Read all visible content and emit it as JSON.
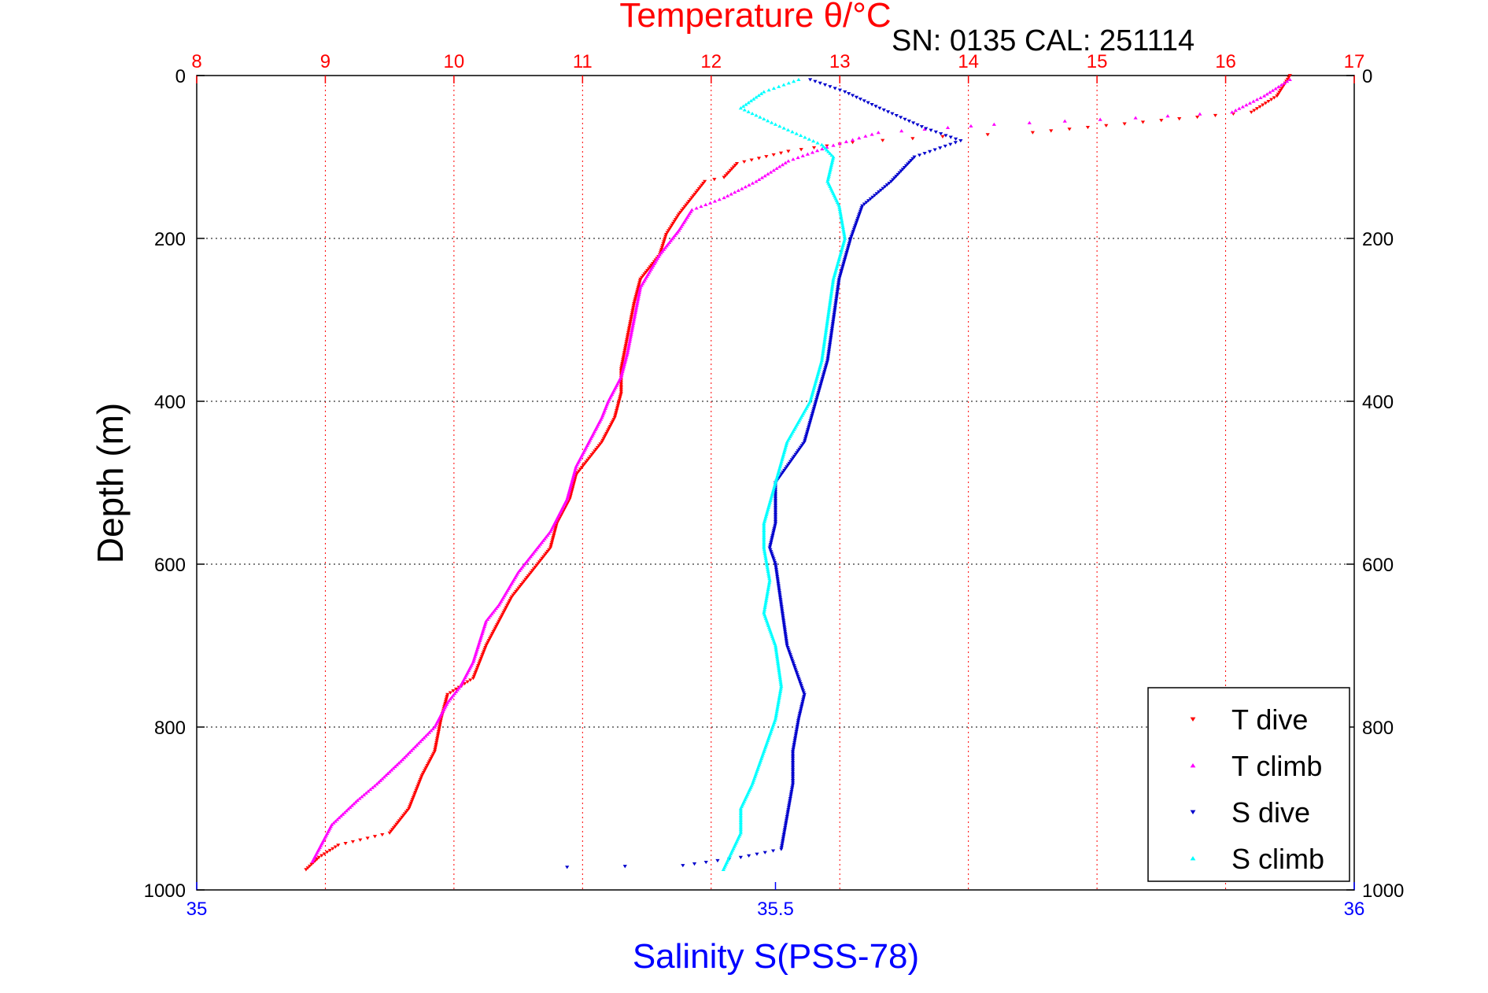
{
  "header": {
    "title": "Temperature θ/°C",
    "subtitle": "SN: 0135  CAL: 251114"
  },
  "colors": {
    "temperature_axis": "#ff0000",
    "salinity_axis": "#0000ff",
    "t_dive": "#ff0000",
    "t_climb": "#ff00ff",
    "s_dive": "#0000cc",
    "s_climb": "#00ffff",
    "grid_depth": "#000000",
    "grid_temp": "#ff0000"
  },
  "chart_data": {
    "type": "scatter",
    "title": "Temperature θ/°C",
    "subtitle": "SN: 0135  CAL: 251114",
    "ylabel": "Depth (m)",
    "xlabel": "Salinity S(PSS-78)",
    "ylim": [
      0,
      1000
    ],
    "y_reversed": true,
    "y_ticks": [
      "0",
      "200",
      "400",
      "600",
      "800",
      "1000"
    ],
    "temperature_axis": {
      "label": "Temperature θ/°C",
      "lim": [
        8,
        17
      ],
      "ticks": [
        "8",
        "9",
        "10",
        "11",
        "12",
        "13",
        "14",
        "15",
        "16",
        "17"
      ]
    },
    "salinity_axis": {
      "label": "Salinity S(PSS-78)",
      "lim": [
        35,
        36
      ],
      "ticks": [
        "35",
        "35.5",
        "36"
      ]
    },
    "grid": true,
    "legend_position": "bottom-right",
    "legend": [
      "T dive",
      "T climb",
      "S dive",
      "S climb"
    ],
    "series": [
      {
        "name": "T dive",
        "axis": "temperature",
        "marker": "triangle-down",
        "points": [
          [
            16.5,
            0
          ],
          [
            16.4,
            25
          ],
          [
            16.2,
            45
          ],
          [
            15.5,
            55
          ],
          [
            14.5,
            70
          ],
          [
            13.8,
            75
          ],
          [
            13.1,
            82
          ],
          [
            12.6,
            93
          ],
          [
            12.2,
            108
          ],
          [
            12.1,
            125
          ],
          [
            11.95,
            130
          ],
          [
            11.85,
            150
          ],
          [
            11.75,
            170
          ],
          [
            11.65,
            195
          ],
          [
            11.6,
            220
          ],
          [
            11.45,
            250
          ],
          [
            11.4,
            280
          ],
          [
            11.35,
            320
          ],
          [
            11.3,
            360
          ],
          [
            11.3,
            390
          ],
          [
            11.25,
            420
          ],
          [
            11.15,
            450
          ],
          [
            11.05,
            470
          ],
          [
            10.95,
            490
          ],
          [
            10.9,
            520
          ],
          [
            10.8,
            550
          ],
          [
            10.75,
            580
          ],
          [
            10.6,
            610
          ],
          [
            10.45,
            640
          ],
          [
            10.35,
            670
          ],
          [
            10.25,
            700
          ],
          [
            10.15,
            740
          ],
          [
            9.95,
            760
          ],
          [
            9.9,
            790
          ],
          [
            9.85,
            830
          ],
          [
            9.75,
            860
          ],
          [
            9.65,
            900
          ],
          [
            9.5,
            930
          ],
          [
            9.1,
            945
          ],
          [
            8.95,
            960
          ],
          [
            8.85,
            975
          ]
        ]
      },
      {
        "name": "T climb",
        "axis": "temperature",
        "marker": "triangle-up",
        "points": [
          [
            16.5,
            5
          ],
          [
            16.3,
            25
          ],
          [
            16.05,
            45
          ],
          [
            15.3,
            52
          ],
          [
            14.2,
            60
          ],
          [
            13.3,
            70
          ],
          [
            12.9,
            88
          ],
          [
            12.6,
            105
          ],
          [
            12.35,
            130
          ],
          [
            12.1,
            150
          ],
          [
            11.85,
            165
          ],
          [
            11.75,
            190
          ],
          [
            11.6,
            220
          ],
          [
            11.45,
            260
          ],
          [
            11.4,
            300
          ],
          [
            11.35,
            340
          ],
          [
            11.3,
            370
          ],
          [
            11.2,
            400
          ],
          [
            11.15,
            420
          ],
          [
            11.05,
            450
          ],
          [
            10.95,
            480
          ],
          [
            10.88,
            520
          ],
          [
            10.75,
            560
          ],
          [
            10.65,
            580
          ],
          [
            10.5,
            610
          ],
          [
            10.35,
            650
          ],
          [
            10.25,
            670
          ],
          [
            10.15,
            720
          ],
          [
            10.05,
            750
          ],
          [
            9.95,
            770
          ],
          [
            9.85,
            800
          ],
          [
            9.6,
            840
          ],
          [
            9.4,
            870
          ],
          [
            9.25,
            890
          ],
          [
            9.05,
            920
          ],
          [
            8.95,
            950
          ],
          [
            8.9,
            965
          ]
        ]
      },
      {
        "name": "S dive",
        "axis": "salinity",
        "marker": "triangle-down",
        "points": [
          [
            35.53,
            5
          ],
          [
            35.56,
            20
          ],
          [
            35.59,
            40
          ],
          [
            35.63,
            65
          ],
          [
            35.66,
            80
          ],
          [
            35.62,
            100
          ],
          [
            35.6,
            130
          ],
          [
            35.575,
            160
          ],
          [
            35.565,
            200
          ],
          [
            35.555,
            250
          ],
          [
            35.55,
            300
          ],
          [
            35.545,
            350
          ],
          [
            35.535,
            400
          ],
          [
            35.525,
            450
          ],
          [
            35.5,
            500
          ],
          [
            35.5,
            550
          ],
          [
            35.495,
            580
          ],
          [
            35.5,
            600
          ],
          [
            35.505,
            650
          ],
          [
            35.51,
            700
          ],
          [
            35.525,
            760
          ],
          [
            35.52,
            790
          ],
          [
            35.515,
            830
          ],
          [
            35.515,
            870
          ],
          [
            35.51,
            910
          ],
          [
            35.505,
            950
          ],
          [
            35.47,
            960
          ],
          [
            35.42,
            970
          ],
          [
            35.32,
            972
          ]
        ]
      },
      {
        "name": "S climb",
        "axis": "salinity",
        "marker": "triangle-up",
        "points": [
          [
            35.52,
            5
          ],
          [
            35.49,
            20
          ],
          [
            35.47,
            40
          ],
          [
            35.5,
            60
          ],
          [
            35.54,
            85
          ],
          [
            35.55,
            100
          ],
          [
            35.545,
            130
          ],
          [
            35.555,
            160
          ],
          [
            35.56,
            200
          ],
          [
            35.55,
            250
          ],
          [
            35.545,
            300
          ],
          [
            35.54,
            350
          ],
          [
            35.53,
            400
          ],
          [
            35.51,
            450
          ],
          [
            35.5,
            500
          ],
          [
            35.49,
            550
          ],
          [
            35.49,
            580
          ],
          [
            35.495,
            620
          ],
          [
            35.49,
            660
          ],
          [
            35.5,
            700
          ],
          [
            35.505,
            750
          ],
          [
            35.5,
            790
          ],
          [
            35.49,
            830
          ],
          [
            35.48,
            870
          ],
          [
            35.47,
            900
          ],
          [
            35.47,
            930
          ],
          [
            35.46,
            960
          ],
          [
            35.455,
            975
          ]
        ]
      }
    ]
  }
}
